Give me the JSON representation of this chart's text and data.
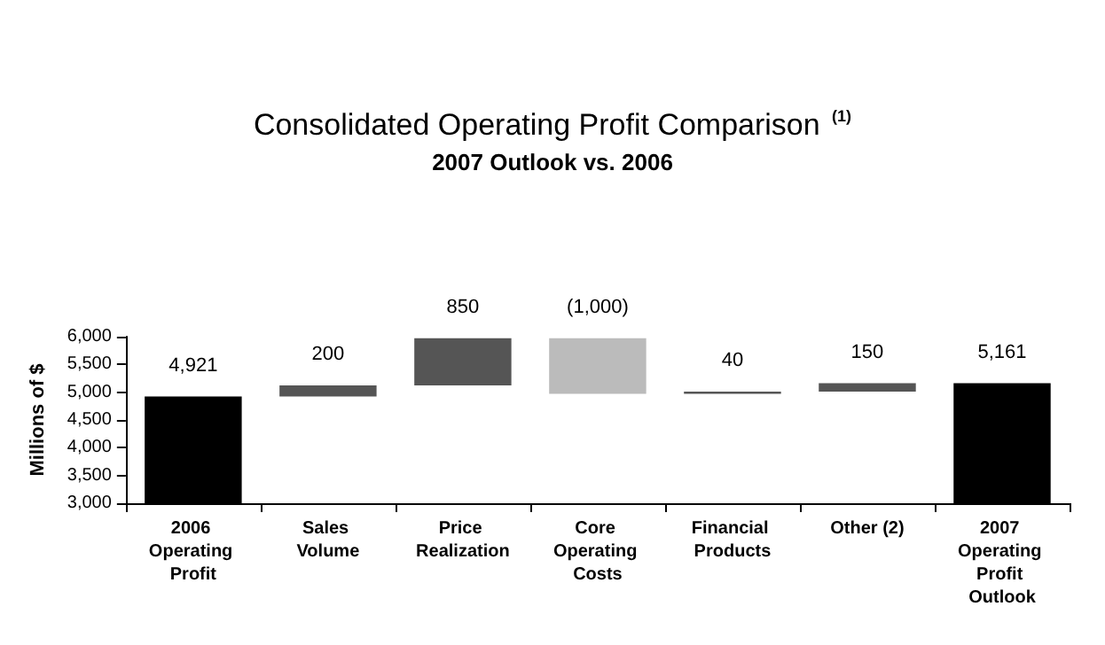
{
  "chart_data": {
    "type": "bar",
    "title": "Consolidated Operating Profit Comparison $^{(1)}$",
    "subtitle": "2007 Outlook vs. 2006",
    "ylabel": "Millions of $",
    "categories": [
      "2006 Operating Profit",
      "Sales Volume",
      "Price Realization",
      "Core Operating Costs",
      "Financial Products",
      "Other (2)",
      "2007 Operating Profit Outlook"
    ],
    "values": [
      4921,
      200,
      850,
      -1000,
      40,
      150,
      5161
    ],
    "base": [
      null,
      4921,
      5121,
      5971,
      4971,
      5011,
      null
    ],
    "colors": [
      "#000000",
      "#555555",
      "#555555",
      "#bbbbbb",
      "#555555",
      "#555555",
      "#000000"
    ],
    "value_labels": [
      "4,921",
      "200",
      "850",
      "(1,000)",
      "40",
      "150",
      "5,161"
    ],
    "ylim": [
      3000,
      6000
    ],
    "yticks": [
      {
        "value": 3000,
        "label": "3,000"
      },
      {
        "value": 3500,
        "label": "3,500"
      },
      {
        "value": 4000,
        "label": "4,000"
      },
      {
        "value": 4500,
        "label": "4,500"
      },
      {
        "value": 5000,
        "label": "5,000"
      },
      {
        "value": 5500,
        "label": "5,500"
      },
      {
        "value": 6000,
        "label": "6,000"
      }
    ]
  }
}
